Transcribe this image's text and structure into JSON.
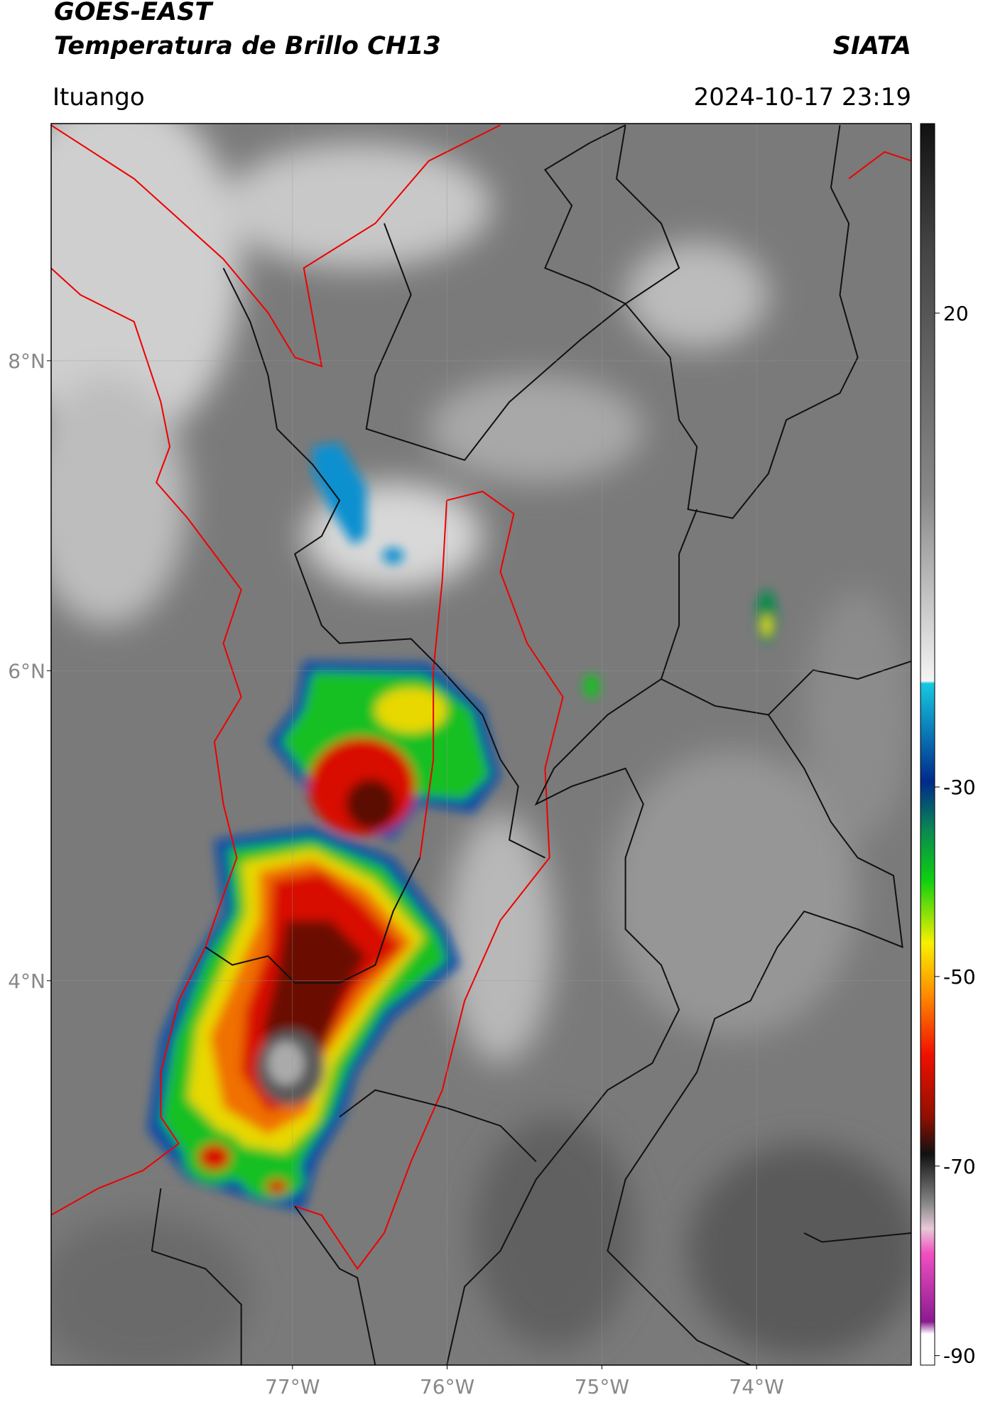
{
  "header": {
    "title": "GOES-EAST",
    "subtitle": "Temperatura de Brillo CH13",
    "agency": "SIATA",
    "location": "Ituango",
    "timestamp": "2024-10-17 23:19"
  },
  "map": {
    "xlim": [
      -78.56,
      -73.0
    ],
    "ylim": [
      1.52,
      9.53
    ],
    "xticks": [
      {
        "value": -77,
        "label": "77°W"
      },
      {
        "value": -76,
        "label": "76°W"
      },
      {
        "value": -75,
        "label": "75°W"
      },
      {
        "value": -74,
        "label": "74°W"
      }
    ],
    "yticks": [
      {
        "value": 8,
        "label": "8°N"
      },
      {
        "value": 6,
        "label": "6°N"
      },
      {
        "value": 4,
        "label": "4°N"
      }
    ],
    "grid": true
  },
  "colorbar": {
    "lim": [
      -91,
      40
    ],
    "ticks": [
      20,
      -30,
      -50,
      -70,
      -90
    ]
  }
}
